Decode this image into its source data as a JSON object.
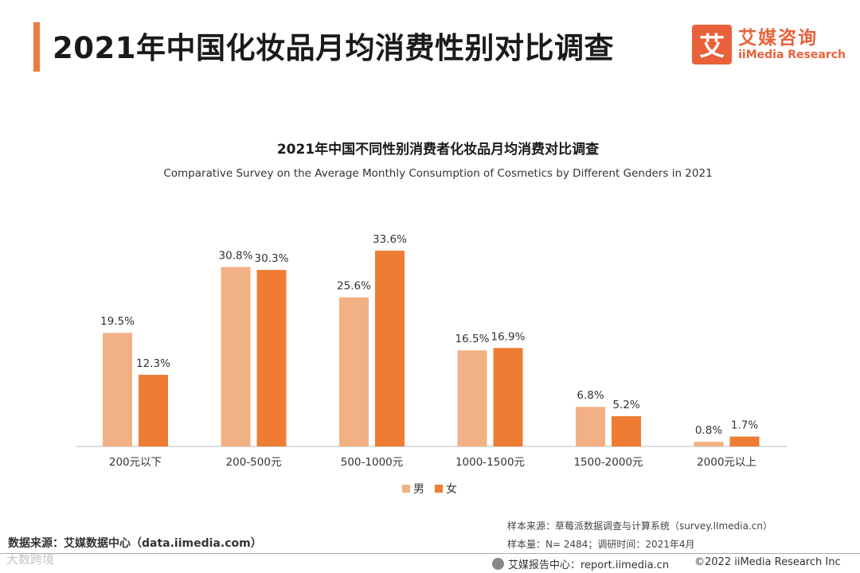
{
  "page": {
    "title": "2021年中国化妆品月均消费性别对比调查"
  },
  "logo": {
    "mark": "艾",
    "cn": "艾媒咨询",
    "en": "iiMedia Research"
  },
  "colors": {
    "accent": "#ee7b3b",
    "male": "#f2b184",
    "female": "#ee7d33",
    "logo": "#e8613a"
  },
  "chart_data": {
    "type": "bar",
    "title": "2021年中国不同性别消费者化妆品月均消费对比调查",
    "subtitle": "Comparative Survey on the Average Monthly Consumption of Cosmetics by Different Genders in 2021",
    "categories": [
      "200元以下",
      "200-500元",
      "500-1000元",
      "1000-1500元",
      "1500-2000元",
      "2000元以上"
    ],
    "series": [
      {
        "name": "男",
        "values": [
          19.5,
          30.8,
          25.6,
          16.5,
          6.8,
          0.8
        ],
        "color": "#f2b184"
      },
      {
        "name": "女",
        "values": [
          12.3,
          30.3,
          33.6,
          16.9,
          5.2,
          1.7
        ],
        "color": "#ee7d33"
      }
    ],
    "value_suffix": "%",
    "ylim": [
      0,
      33.6
    ],
    "grid": false,
    "legend": "bottom-center",
    "xlabel": "",
    "ylabel": ""
  },
  "footer": {
    "source_left": "数据来源：艾媒数据中心（data.iimedia.com）",
    "source_right_1": "样本来源：草莓派数据调查与计算系统（survey.IImedia.cn）",
    "source_right_2": "样本量：N= 2484；调研时间：2021年4月",
    "report": "艾媒报告中心：report.iimedia.cn",
    "copyright": "©2022  iiMedia Research  Inc",
    "watermark": "大数跨境"
  }
}
